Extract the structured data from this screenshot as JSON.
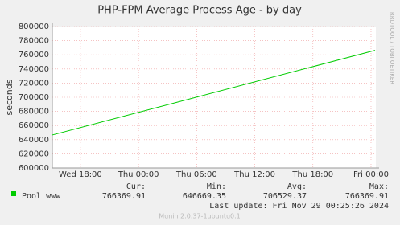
{
  "chart_data": {
    "type": "line",
    "title": "PHP-FPM Average Process Age - by day",
    "y_label": "seconds",
    "side_label": "RRDTOOL / TOBI OETIKER",
    "xlim": [
      15.1,
      48.5
    ],
    "xticks": [
      {
        "value": 18,
        "label": "Wed 18:00"
      },
      {
        "value": 24,
        "label": "Thu 00:00"
      },
      {
        "value": 30,
        "label": "Thu 06:00"
      },
      {
        "value": 36,
        "label": "Thu 12:00"
      },
      {
        "value": 42,
        "label": "Thu 18:00"
      },
      {
        "value": 48,
        "label": "Fri 00:00"
      }
    ],
    "ylim": [
      600000,
      800000
    ],
    "yticks": [
      600000,
      620000,
      640000,
      660000,
      680000,
      700000,
      720000,
      740000,
      760000,
      780000,
      800000
    ],
    "grid": true,
    "series": [
      {
        "name": "Pool www",
        "color": "#00cc00",
        "x": [
          15.1,
          48.42
        ],
        "values": [
          646669.35,
          766369.91
        ]
      }
    ],
    "summary": {
      "headers": [
        "Cur:",
        "Min:",
        "Avg:",
        "Max:"
      ],
      "values": [
        766369.91,
        646669.35,
        706529.37,
        766369.91
      ]
    },
    "last_update": "Last update: Fri Nov 29 00:25:26 2024",
    "footer": "Munin 2.0.37-1ubuntu0.1"
  }
}
